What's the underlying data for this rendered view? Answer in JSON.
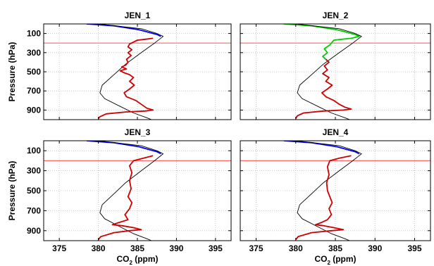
{
  "chart_data": [
    {
      "type": "line",
      "title": "JEN_1",
      "xlabel": "",
      "ylabel": "Pressure (hPa)",
      "xlim": [
        373,
        397
      ],
      "ylim": [
        0,
        1000
      ],
      "yreversed": true,
      "grid": true,
      "ref_line_y": 200,
      "series": [
        {
          "color": "#0000ff",
          "points": [
            [
              378.5,
              0
            ],
            [
              382.0,
              20
            ],
            [
              385.2,
              60
            ],
            [
              387.5,
              110
            ],
            [
              388.0,
              130
            ]
          ]
        },
        {
          "color": "#000000",
          "points": [
            [
              380,
              0
            ],
            [
              385.5,
              50
            ],
            [
              387.5,
              100
            ],
            [
              388.3,
              130
            ],
            [
              387.2,
              200
            ],
            [
              385.5,
              300
            ],
            [
              383.5,
              420
            ],
            [
              382.0,
              530
            ],
            [
              380.5,
              640
            ],
            [
              380.2,
              720
            ],
            [
              380.8,
              780
            ],
            [
              383.0,
              870
            ],
            [
              384.5,
              930
            ],
            [
              386.2,
              980
            ],
            [
              386.8,
              1000
            ]
          ]
        },
        {
          "color": "#cc0000",
          "points": [
            [
              387.0,
              150
            ],
            [
              386.0,
              160
            ],
            [
              385.0,
              170
            ],
            [
              384.0,
              210
            ],
            [
              383.8,
              240
            ],
            [
              384.3,
              270
            ],
            [
              383.8,
              300
            ],
            [
              384.2,
              330
            ],
            [
              383.6,
              370
            ],
            [
              383.8,
              400
            ],
            [
              383.5,
              430
            ],
            [
              383.0,
              450
            ],
            [
              383.6,
              470
            ],
            [
              382.8,
              490
            ],
            [
              383.3,
              510
            ],
            [
              384.0,
              530
            ],
            [
              384.5,
              560
            ],
            [
              384.0,
              600
            ],
            [
              384.6,
              640
            ],
            [
              384.0,
              680
            ],
            [
              383.3,
              720
            ],
            [
              383.6,
              760
            ],
            [
              384.8,
              800
            ],
            [
              385.5,
              840
            ],
            [
              386.2,
              880
            ],
            [
              387.0,
              900
            ],
            [
              386.0,
              910
            ],
            [
              383.5,
              920
            ],
            [
              381.0,
              940
            ],
            [
              380.2,
              970
            ],
            [
              380.0,
              990
            ]
          ]
        }
      ]
    },
    {
      "type": "line",
      "title": "JEN_2",
      "xlabel": "",
      "ylabel": "",
      "xlim": [
        373,
        397
      ],
      "ylim": [
        0,
        1000
      ],
      "yreversed": true,
      "grid": true,
      "ref_line_y": 200,
      "series": [
        {
          "color": "#00cc00",
          "points": [
            [
              378.5,
              0
            ],
            [
              382.0,
              20
            ],
            [
              385.2,
              60
            ],
            [
              387.5,
              110
            ],
            [
              388.0,
              130
            ],
            [
              387.0,
              150
            ],
            [
              385.8,
              160
            ],
            [
              384.8,
              170
            ],
            [
              384.3,
              220
            ],
            [
              383.6,
              260
            ],
            [
              384.0,
              300
            ],
            [
              383.4,
              340
            ],
            [
              383.8,
              370
            ]
          ]
        },
        {
          "color": "#000000",
          "points": [
            [
              380,
              0
            ],
            [
              385.5,
              50
            ],
            [
              387.5,
              100
            ],
            [
              388.3,
              130
            ],
            [
              387.2,
              200
            ],
            [
              385.5,
              300
            ],
            [
              383.5,
              420
            ],
            [
              382.0,
              530
            ],
            [
              380.5,
              640
            ],
            [
              380.2,
              720
            ],
            [
              380.8,
              780
            ],
            [
              383.0,
              870
            ],
            [
              384.5,
              930
            ],
            [
              386.2,
              980
            ],
            [
              386.8,
              1000
            ]
          ]
        },
        {
          "color": "#cc0000",
          "points": [
            [
              383.8,
              370
            ],
            [
              384.2,
              400
            ],
            [
              383.6,
              440
            ],
            [
              384.0,
              480
            ],
            [
              383.4,
              520
            ],
            [
              384.2,
              560
            ],
            [
              383.8,
              600
            ],
            [
              384.6,
              640
            ],
            [
              384.0,
              680
            ],
            [
              383.3,
              720
            ],
            [
              383.8,
              760
            ],
            [
              384.8,
              800
            ],
            [
              385.5,
              840
            ],
            [
              386.2,
              870
            ],
            [
              387.0,
              890
            ],
            [
              386.0,
              900
            ],
            [
              383.5,
              910
            ],
            [
              381.0,
              930
            ],
            [
              380.2,
              960
            ],
            [
              380.0,
              990
            ]
          ]
        }
      ]
    },
    {
      "type": "line",
      "title": "JEN_3",
      "xlabel": "CO₂ (ppm)",
      "ylabel": "Pressure (hPa)",
      "xlim": [
        373,
        397
      ],
      "ylim": [
        0,
        1000
      ],
      "yreversed": true,
      "grid": true,
      "ref_line_y": 200,
      "series": [
        {
          "color": "#0000ff",
          "points": [
            [
              378.5,
              0
            ],
            [
              382.0,
              20
            ],
            [
              385.2,
              60
            ],
            [
              387.5,
              110
            ],
            [
              388.0,
              130
            ]
          ]
        },
        {
          "color": "#000000",
          "points": [
            [
              380,
              0
            ],
            [
              385.5,
              50
            ],
            [
              387.5,
              100
            ],
            [
              388.3,
              130
            ],
            [
              387.2,
              200
            ],
            [
              385.5,
              300
            ],
            [
              383.5,
              420
            ],
            [
              382.0,
              530
            ],
            [
              380.5,
              640
            ],
            [
              380.2,
              720
            ],
            [
              380.8,
              780
            ],
            [
              383.0,
              870
            ],
            [
              384.5,
              930
            ],
            [
              386.2,
              980
            ],
            [
              386.8,
              1000
            ]
          ]
        },
        {
          "color": "#cc0000",
          "points": [
            [
              387.0,
              150
            ],
            [
              386.0,
              170
            ],
            [
              384.5,
              200
            ],
            [
              384.0,
              250
            ],
            [
              384.3,
              320
            ],
            [
              384.0,
              400
            ],
            [
              384.2,
              480
            ],
            [
              383.8,
              560
            ],
            [
              384.3,
              620
            ],
            [
              384.0,
              680
            ],
            [
              383.4,
              740
            ],
            [
              383.8,
              790
            ],
            [
              382.6,
              820
            ],
            [
              381.8,
              840
            ],
            [
              383.0,
              850
            ],
            [
              384.5,
              870
            ],
            [
              385.5,
              890
            ],
            [
              384.0,
              900
            ],
            [
              382.0,
              920
            ],
            [
              380.3,
              960
            ],
            [
              380.0,
              990
            ]
          ]
        }
      ]
    },
    {
      "type": "line",
      "title": "JEN_4",
      "xlabel": "CO₂ (ppm)",
      "ylabel": "",
      "xlim": [
        373,
        397
      ],
      "ylim": [
        0,
        1000
      ],
      "yreversed": true,
      "grid": true,
      "ref_line_y": 200,
      "series": [
        {
          "color": "#0000ff",
          "points": [
            [
              378.5,
              0
            ],
            [
              382.0,
              20
            ],
            [
              385.2,
              60
            ],
            [
              387.5,
              110
            ],
            [
              388.0,
              130
            ]
          ]
        },
        {
          "color": "#000000",
          "points": [
            [
              380,
              0
            ],
            [
              385.5,
              50
            ],
            [
              387.5,
              100
            ],
            [
              388.3,
              130
            ],
            [
              387.2,
              200
            ],
            [
              385.5,
              300
            ],
            [
              383.5,
              420
            ],
            [
              382.0,
              530
            ],
            [
              380.5,
              640
            ],
            [
              380.2,
              720
            ],
            [
              380.8,
              780
            ],
            [
              383.0,
              870
            ],
            [
              384.5,
              930
            ],
            [
              386.2,
              980
            ],
            [
              386.8,
              1000
            ]
          ]
        },
        {
          "color": "#cc0000",
          "points": [
            [
              387.0,
              150
            ],
            [
              385.5,
              175
            ],
            [
              384.3,
              200
            ],
            [
              384.0,
              260
            ],
            [
              384.2,
              340
            ],
            [
              383.9,
              420
            ],
            [
              384.0,
              500
            ],
            [
              384.3,
              560
            ],
            [
              384.6,
              620
            ],
            [
              384.2,
              680
            ],
            [
              384.5,
              740
            ],
            [
              384.0,
              790
            ],
            [
              383.2,
              820
            ],
            [
              382.5,
              840
            ],
            [
              383.5,
              850
            ],
            [
              384.8,
              870
            ],
            [
              386.0,
              890
            ],
            [
              384.5,
              900
            ],
            [
              382.0,
              920
            ],
            [
              380.3,
              960
            ],
            [
              380.0,
              990
            ]
          ]
        }
      ]
    }
  ],
  "axes": {
    "y_ticks": [
      100,
      300,
      500,
      700,
      900
    ],
    "x_ticks": [
      375,
      380,
      385,
      390,
      395
    ],
    "y_label": "Pressure (hPa)",
    "x_label_main": "CO",
    "x_label_sub": "2",
    "x_label_unit": " (ppm)"
  },
  "colors": {
    "grid": "#bbbbbb",
    "ref_line": "#ff6666"
  }
}
